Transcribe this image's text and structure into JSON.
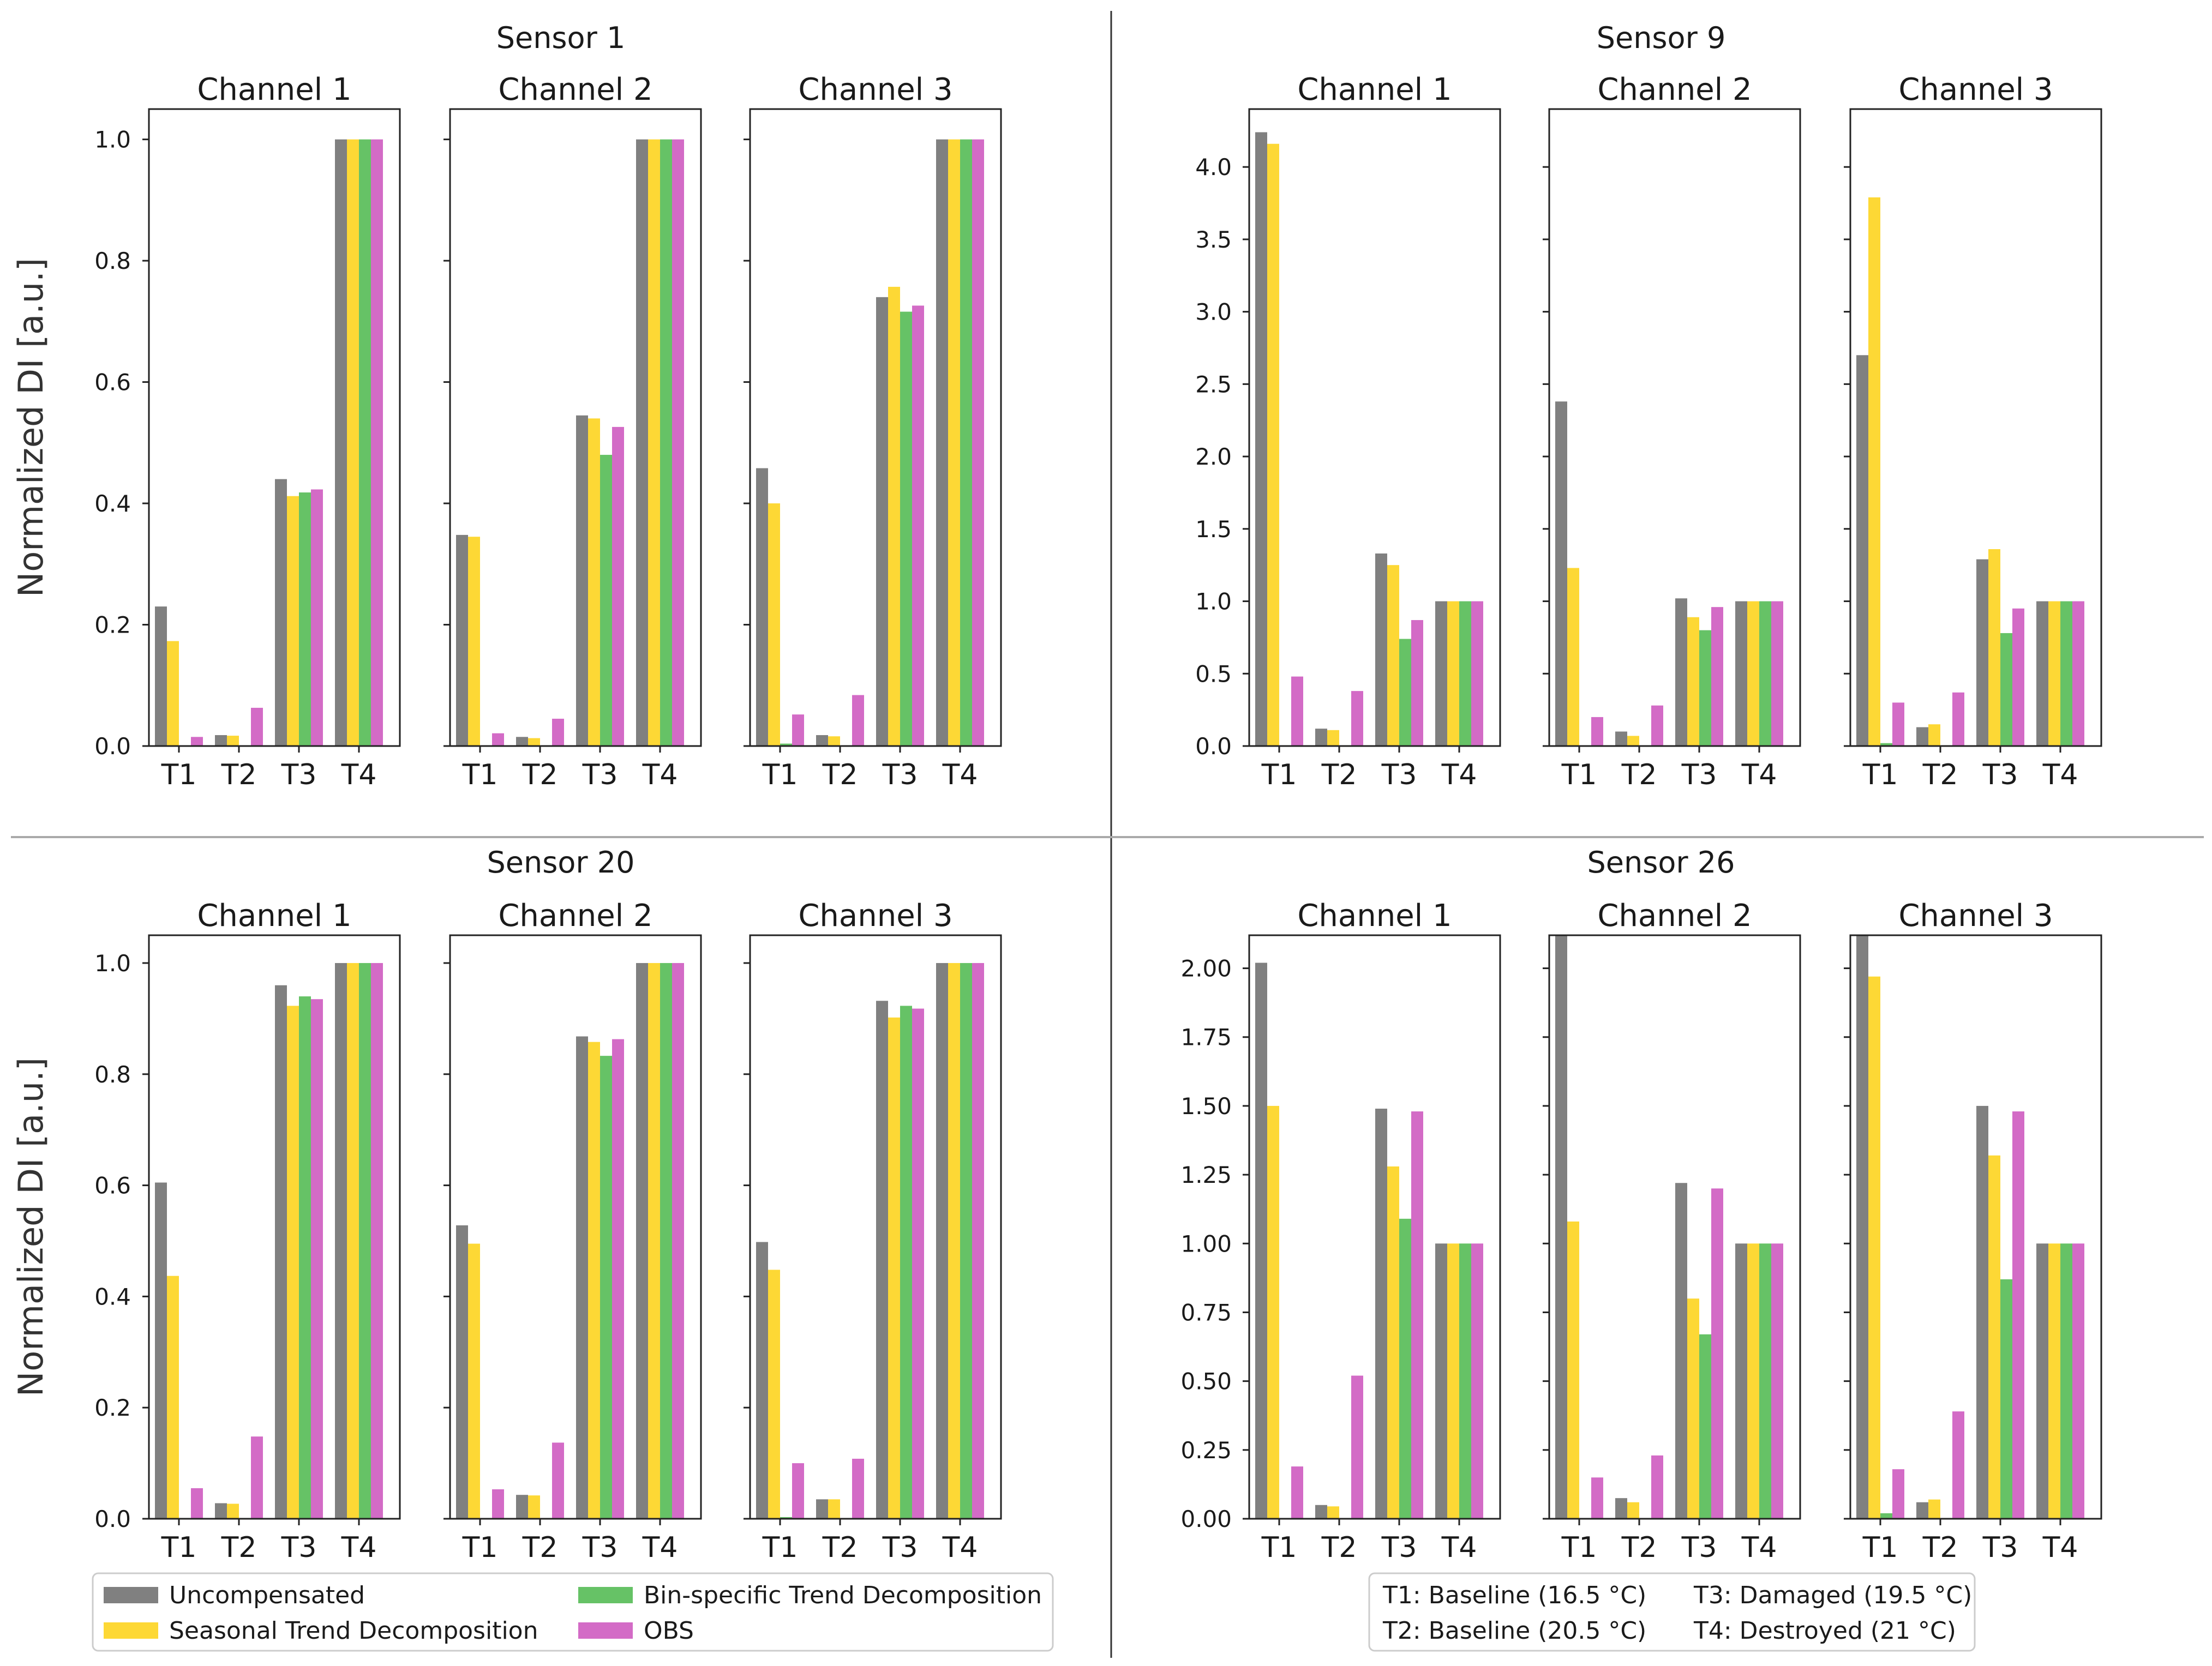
{
  "colors": {
    "Uncompensated": "#808080",
    "Seasonal Trend Decomposition": "#fdd835",
    "Bin-specific Trend Decomposition": "#66c266",
    "OBS": "#d36bc6"
  },
  "legend": {
    "methods": [
      "Uncompensated",
      "Seasonal Trend Decomposition",
      "Bin-specific Trend Decomposition",
      "OBS"
    ],
    "conditions": [
      "T1: Baseline (16.5 °C)",
      "T3: Damaged (19.5 °C)",
      "T2: Baseline (20.5 °C)",
      "T4: Destroyed (21 °C)"
    ]
  },
  "ylabel": "Normalized DI [a.u.]",
  "chart_data": [
    {
      "type": "bar",
      "title": "Sensor 1",
      "ylabel": "Normalized DI [a.u.]",
      "ylim": [
        0,
        1.05
      ],
      "yticks": [
        "0.0",
        "0.2",
        "0.4",
        "0.6",
        "0.8",
        "1.0"
      ],
      "categories": [
        "T1",
        "T2",
        "T3",
        "T4"
      ],
      "panels": [
        {
          "title": "Channel 1",
          "series": [
            {
              "name": "Uncompensated",
              "values": [
                0.23,
                0.018,
                0.44,
                1.0
              ]
            },
            {
              "name": "Seasonal Trend Decomposition",
              "values": [
                0.173,
                0.017,
                0.412,
                1.0
              ]
            },
            {
              "name": "Bin-specific Trend Decomposition",
              "values": [
                0.0,
                0.0,
                0.418,
                1.0
              ]
            },
            {
              "name": "OBS",
              "values": [
                0.015,
                0.063,
                0.423,
                1.0
              ]
            }
          ]
        },
        {
          "title": "Channel 2",
          "series": [
            {
              "name": "Uncompensated",
              "values": [
                0.348,
                0.015,
                0.545,
                1.0
              ]
            },
            {
              "name": "Seasonal Trend Decomposition",
              "values": [
                0.345,
                0.013,
                0.54,
                1.0
              ]
            },
            {
              "name": "Bin-specific Trend Decomposition",
              "values": [
                0.0,
                0.0,
                0.48,
                1.0
              ]
            },
            {
              "name": "OBS",
              "values": [
                0.021,
                0.045,
                0.526,
                1.0
              ]
            }
          ]
        },
        {
          "title": "Channel 3",
          "series": [
            {
              "name": "Uncompensated",
              "values": [
                0.458,
                0.018,
                0.74,
                1.0
              ]
            },
            {
              "name": "Seasonal Trend Decomposition",
              "values": [
                0.4,
                0.016,
                0.757,
                1.0
              ]
            },
            {
              "name": "Bin-specific Trend Decomposition",
              "values": [
                0.004,
                0.0,
                0.716,
                1.0
              ]
            },
            {
              "name": "OBS",
              "values": [
                0.052,
                0.084,
                0.726,
                1.0
              ]
            }
          ]
        }
      ]
    },
    {
      "type": "bar",
      "title": "Sensor 9",
      "ylim": [
        0,
        4.4
      ],
      "yticks": [
        "0.0",
        "0.5",
        "1.0",
        "1.5",
        "2.0",
        "2.5",
        "3.0",
        "3.5",
        "4.0"
      ],
      "categories": [
        "T1",
        "T2",
        "T3",
        "T4"
      ],
      "panels": [
        {
          "title": "Channel 1",
          "series": [
            {
              "name": "Uncompensated",
              "values": [
                4.24,
                0.12,
                1.33,
                1.0
              ]
            },
            {
              "name": "Seasonal Trend Decomposition",
              "values": [
                4.16,
                0.11,
                1.25,
                1.0
              ]
            },
            {
              "name": "Bin-specific Trend Decomposition",
              "values": [
                0.0,
                0.0,
                0.74,
                1.0
              ]
            },
            {
              "name": "OBS",
              "values": [
                0.48,
                0.38,
                0.87,
                1.0
              ]
            }
          ]
        },
        {
          "title": "Channel 2",
          "series": [
            {
              "name": "Uncompensated",
              "values": [
                2.38,
                0.1,
                1.02,
                1.0
              ]
            },
            {
              "name": "Seasonal Trend Decomposition",
              "values": [
                1.23,
                0.07,
                0.89,
                1.0
              ]
            },
            {
              "name": "Bin-specific Trend Decomposition",
              "values": [
                0.0,
                0.0,
                0.8,
                1.0
              ]
            },
            {
              "name": "OBS",
              "values": [
                0.2,
                0.28,
                0.96,
                1.0
              ]
            }
          ]
        },
        {
          "title": "Channel 3",
          "series": [
            {
              "name": "Uncompensated",
              "values": [
                2.7,
                0.13,
                1.29,
                1.0
              ]
            },
            {
              "name": "Seasonal Trend Decomposition",
              "values": [
                3.79,
                0.15,
                1.36,
                1.0
              ]
            },
            {
              "name": "Bin-specific Trend Decomposition",
              "values": [
                0.02,
                0.0,
                0.78,
                1.0
              ]
            },
            {
              "name": "OBS",
              "values": [
                0.3,
                0.37,
                0.95,
                1.0
              ]
            }
          ]
        }
      ]
    },
    {
      "type": "bar",
      "title": "Sensor 20",
      "ylabel": "Normalized DI [a.u.]",
      "ylim": [
        0,
        1.05
      ],
      "yticks": [
        "0.0",
        "0.2",
        "0.4",
        "0.6",
        "0.8",
        "1.0"
      ],
      "categories": [
        "T1",
        "T2",
        "T3",
        "T4"
      ],
      "panels": [
        {
          "title": "Channel 1",
          "series": [
            {
              "name": "Uncompensated",
              "values": [
                0.605,
                0.028,
                0.96,
                1.0
              ]
            },
            {
              "name": "Seasonal Trend Decomposition",
              "values": [
                0.437,
                0.027,
                0.923,
                1.0
              ]
            },
            {
              "name": "Bin-specific Trend Decomposition",
              "values": [
                0.0,
                0.0,
                0.94,
                1.0
              ]
            },
            {
              "name": "OBS",
              "values": [
                0.055,
                0.148,
                0.935,
                1.0
              ]
            }
          ]
        },
        {
          "title": "Channel 2",
          "series": [
            {
              "name": "Uncompensated",
              "values": [
                0.528,
                0.043,
                0.868,
                1.0
              ]
            },
            {
              "name": "Seasonal Trend Decomposition",
              "values": [
                0.495,
                0.042,
                0.858,
                1.0
              ]
            },
            {
              "name": "Bin-specific Trend Decomposition",
              "values": [
                0.0,
                0.0,
                0.833,
                1.0
              ]
            },
            {
              "name": "OBS",
              "values": [
                0.053,
                0.137,
                0.863,
                1.0
              ]
            }
          ]
        },
        {
          "title": "Channel 3",
          "series": [
            {
              "name": "Uncompensated",
              "values": [
                0.498,
                0.035,
                0.932,
                1.0
              ]
            },
            {
              "name": "Seasonal Trend Decomposition",
              "values": [
                0.448,
                0.035,
                0.902,
                1.0
              ]
            },
            {
              "name": "Bin-specific Trend Decomposition",
              "values": [
                0.003,
                0.0,
                0.923,
                1.0
              ]
            },
            {
              "name": "OBS",
              "values": [
                0.1,
                0.108,
                0.918,
                1.0
              ]
            }
          ]
        }
      ]
    },
    {
      "type": "bar",
      "title": "Sensor 26",
      "ylim": [
        0,
        2.12
      ],
      "yticks": [
        "0.00",
        "0.25",
        "0.50",
        "0.75",
        "1.00",
        "1.25",
        "1.50",
        "1.75",
        "2.00"
      ],
      "categories": [
        "T1",
        "T2",
        "T3",
        "T4"
      ],
      "panels": [
        {
          "title": "Channel 1",
          "series": [
            {
              "name": "Uncompensated",
              "values": [
                2.02,
                0.05,
                1.49,
                1.0
              ]
            },
            {
              "name": "Seasonal Trend Decomposition",
              "values": [
                1.5,
                0.045,
                1.28,
                1.0
              ]
            },
            {
              "name": "Bin-specific Trend Decomposition",
              "values": [
                0.0,
                0.0,
                1.09,
                1.0
              ]
            },
            {
              "name": "OBS",
              "values": [
                0.19,
                0.52,
                1.48,
                1.0
              ]
            }
          ]
        },
        {
          "title": "Channel 2",
          "series": [
            {
              "name": "Uncompensated",
              "values": [
                2.12,
                0.075,
                1.22,
                1.0
              ]
            },
            {
              "name": "Seasonal Trend Decomposition",
              "values": [
                1.08,
                0.06,
                0.8,
                1.0
              ]
            },
            {
              "name": "Bin-specific Trend Decomposition",
              "values": [
                0.0,
                0.0,
                0.67,
                1.0
              ]
            },
            {
              "name": "OBS",
              "values": [
                0.15,
                0.23,
                1.2,
                1.0
              ]
            }
          ]
        },
        {
          "title": "Channel 3",
          "series": [
            {
              "name": "Uncompensated",
              "values": [
                2.12,
                0.06,
                1.5,
                1.0
              ]
            },
            {
              "name": "Seasonal Trend Decomposition",
              "values": [
                1.97,
                0.07,
                1.32,
                1.0
              ]
            },
            {
              "name": "Bin-specific Trend Decomposition",
              "values": [
                0.02,
                0.0,
                0.87,
                1.0
              ]
            },
            {
              "name": "OBS",
              "values": [
                0.18,
                0.39,
                1.48,
                1.0
              ]
            }
          ]
        }
      ]
    }
  ]
}
